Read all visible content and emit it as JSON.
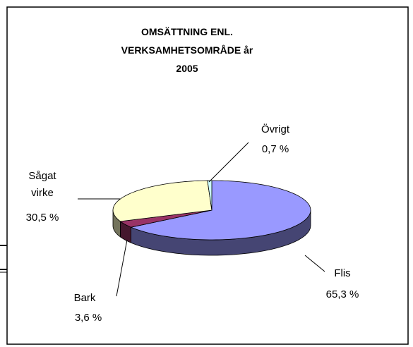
{
  "chart_data": {
    "type": "pie",
    "title": "OMSÄTTNING ENL. VERKSAMHETSOMRÅDE år 2005",
    "categories": [
      "Flis",
      "Bark",
      "Sågat virke",
      "Övrigt"
    ],
    "values": [
      65.3,
      3.6,
      30.5,
      0.7
    ],
    "value_labels": [
      "65,3 %",
      "3,6 %",
      "30,5 %",
      "0,7 %"
    ],
    "colors": [
      "#9999ff",
      "#993366",
      "#ffffcc",
      "#ccffff"
    ]
  }
}
